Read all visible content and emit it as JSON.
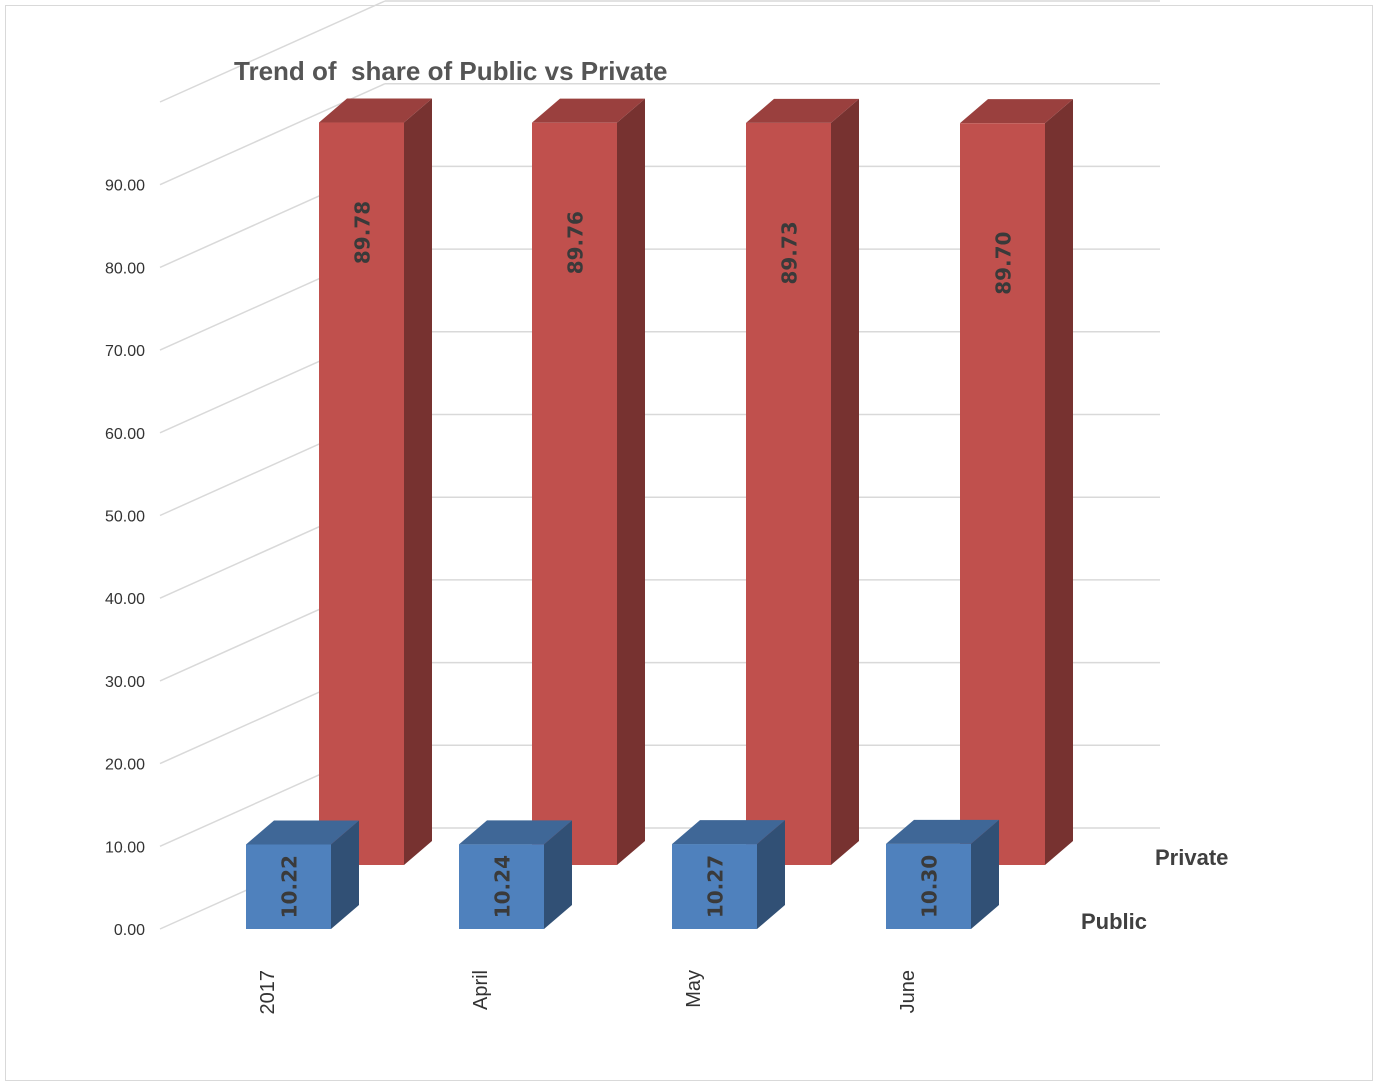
{
  "chart_data": {
    "type": "bar",
    "title": "Trend of  share of Public vs Private",
    "categories": [
      "2017",
      "April",
      "May",
      "June"
    ],
    "series": [
      {
        "name": "Public",
        "values": [
          10.22,
          10.24,
          10.27,
          10.3
        ],
        "color": "#4f81bd"
      },
      {
        "name": "Private",
        "values": [
          89.78,
          89.76,
          89.73,
          89.7
        ],
        "color": "#c0504d"
      }
    ],
    "data_labels": {
      "Public": [
        "10.22",
        "10.24",
        "10.27",
        "10.30"
      ],
      "Private": [
        "89.78",
        "89.76",
        "89.73",
        "89.70"
      ]
    },
    "ylim": [
      0,
      100
    ],
    "yticks": [
      "0.00",
      "10.00",
      "20.00",
      "30.00",
      "40.00",
      "50.00",
      "60.00",
      "70.00",
      "80.00",
      "90.00"
    ],
    "grid": true,
    "three_d": true,
    "series_axis_labels": [
      "Private",
      "Public"
    ]
  }
}
